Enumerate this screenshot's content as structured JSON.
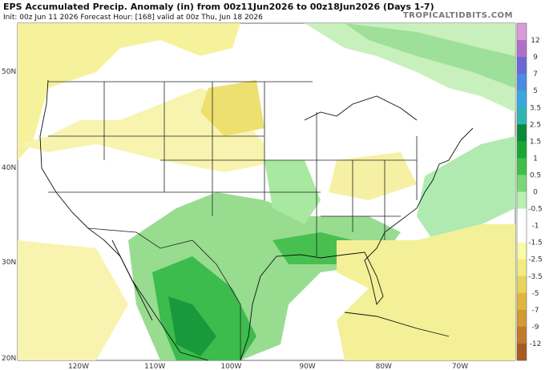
{
  "header": {
    "title": "EPS Accumulated Precip. Anomaly (in) from 00z11Jun2026 to 00z18Jun2026 (Days 1-7)",
    "subtitle": "Init: 00z Jun 11 2026   Forecast Hour: [168]   valid at 00z Thu, Jun 18 2026",
    "site": "TROPICALTIDBITS.COM"
  },
  "map": {
    "lat_labels": [
      "50N",
      "40N",
      "30N",
      "20N"
    ],
    "lon_labels": [
      "120W",
      "110W",
      "100W",
      "90W",
      "80W",
      "70W"
    ]
  },
  "colorbar": {
    "labels": [
      "12",
      "9",
      "7",
      "5",
      "3.5",
      "2.5",
      "1.5",
      "1",
      "0.5",
      "0",
      "-0.5",
      "-1",
      "-1.5",
      "-2.5",
      "-3.5",
      "-5",
      "-7",
      "-9",
      "-12"
    ],
    "colors": [
      "#d89ad8",
      "#b070c8",
      "#6868d8",
      "#4a8ce0",
      "#3aa8e0",
      "#2cb8b0",
      "#0a8a3a",
      "#18a830",
      "#3cc048",
      "#78d878",
      "#b8f0b0",
      "#ffffff",
      "#ffffff",
      "#fafaa8",
      "#f2ec80",
      "#e8d45c",
      "#e0b640",
      "#d29a34",
      "#c27a2a",
      "#a85a20"
    ]
  }
}
